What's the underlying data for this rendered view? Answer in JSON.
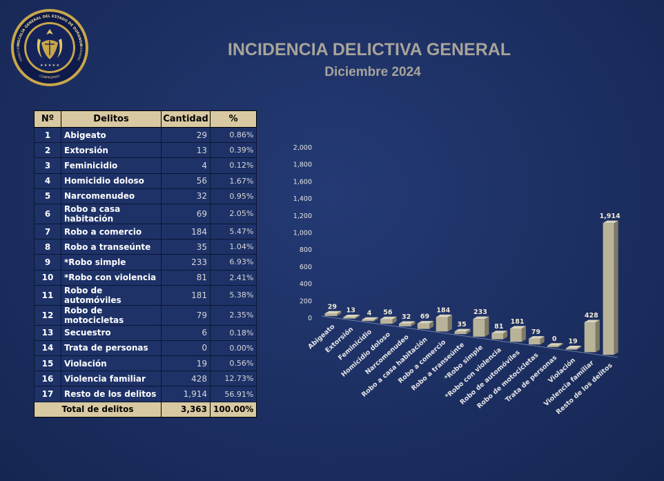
{
  "logo": {
    "ring_text": "FISCALÍA GENERAL DEL ESTADO DE DURANGO",
    "left_word": "HONESTIDAD",
    "right_word": "TRANSPARENCIA",
    "bottom_word": "COMPROMISO"
  },
  "header": {
    "title": "INCIDENCIA DELICTIVA GENERAL",
    "subtitle": "Diciembre 2024"
  },
  "table": {
    "columns": [
      "Nº",
      "Delitos",
      "Cantidad",
      "%"
    ],
    "rows": [
      {
        "n": "1",
        "delito": "Abigeato",
        "cantidad": "29",
        "pct": "0.86%"
      },
      {
        "n": "2",
        "delito": "Extorsión",
        "cantidad": "13",
        "pct": "0.39%"
      },
      {
        "n": "3",
        "delito": "Feminicidio",
        "cantidad": "4",
        "pct": "0.12%"
      },
      {
        "n": "4",
        "delito": "Homicidio doloso",
        "cantidad": "56",
        "pct": "1.67%"
      },
      {
        "n": "5",
        "delito": "Narcomenudeo",
        "cantidad": "32",
        "pct": "0.95%"
      },
      {
        "n": "6",
        "delito": "Robo a casa habitación",
        "cantidad": "69",
        "pct": "2.05%"
      },
      {
        "n": "7",
        "delito": "Robo a comercio",
        "cantidad": "184",
        "pct": "5.47%"
      },
      {
        "n": "8",
        "delito": "Robo a transeúnte",
        "cantidad": "35",
        "pct": "1.04%"
      },
      {
        "n": "9",
        "delito": "*Robo simple",
        "cantidad": "233",
        "pct": "6.93%"
      },
      {
        "n": "10",
        "delito": "*Robo con violencia",
        "cantidad": "81",
        "pct": "2.41%"
      },
      {
        "n": "11",
        "delito": "Robo de automóviles",
        "cantidad": "181",
        "pct": "5.38%"
      },
      {
        "n": "12",
        "delito": "Robo de motocicletas",
        "cantidad": "79",
        "pct": "2.35%"
      },
      {
        "n": "13",
        "delito": "Secuestro",
        "cantidad": "6",
        "pct": "0.18%"
      },
      {
        "n": "14",
        "delito": "Trata de personas",
        "cantidad": "0",
        "pct": "0.00%"
      },
      {
        "n": "15",
        "delito": "Violación",
        "cantidad": "19",
        "pct": "0.56%"
      },
      {
        "n": "16",
        "delito": "Violencia familiar",
        "cantidad": "428",
        "pct": "12.73%"
      },
      {
        "n": "17",
        "delito": "Resto de los delitos",
        "cantidad": "1,914",
        "pct": "56.91%"
      }
    ],
    "total": {
      "label": "Total de delitos",
      "cantidad": "3,363",
      "pct": "100.00%"
    }
  },
  "chart_data": {
    "type": "bar",
    "categories": [
      "Abigeato",
      "Extorsión",
      "Feminicidio",
      "Homicidio doloso",
      "Narcomenudeo",
      "Robo a casa habitación",
      "Robo a comercio",
      "Robo a transeúnte",
      "*Robo simple",
      "*Robo con violencia",
      "Robo de automóviles",
      "Robo de motocicletas",
      "Trata de personas",
      "Violación",
      "Violencia familiar",
      "Resto de los delitos"
    ],
    "values": [
      29,
      13,
      4,
      56,
      32,
      69,
      184,
      35,
      233,
      81,
      181,
      79,
      0,
      19,
      428,
      1914
    ],
    "data_labels": [
      "29",
      "13",
      "4",
      "56",
      "32",
      "69",
      "184",
      "35",
      "233",
      "81",
      "181",
      "79",
      "0",
      "19",
      "428",
      "1,914"
    ],
    "y_ticks": [
      "0",
      "200",
      "400",
      "600",
      "800",
      "1,000",
      "1,200",
      "1,400",
      "1,600",
      "1,800",
      "2,000"
    ],
    "ylim": [
      0,
      2000
    ],
    "style": "3d-perspective",
    "bar_color": "#b9b39a",
    "grid": false,
    "title": "",
    "xlabel": "",
    "ylabel": ""
  }
}
